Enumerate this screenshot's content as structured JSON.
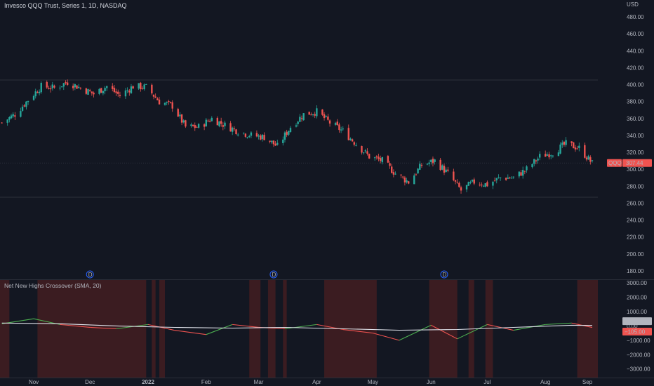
{
  "header": {
    "title": "Invesco QQQ Trust, Series 1, 1D, NASDAQ",
    "currency": "USD"
  },
  "indicator": {
    "title": "Net New Highs Crossover (SMA, 20)"
  },
  "colors": {
    "up": "#26a69a",
    "down": "#ef5350",
    "bg": "#131722",
    "green_line": "#4caf50",
    "red_line": "#ef5350",
    "sma_line": "#e0e3eb",
    "shade": "#4a1f22"
  },
  "chart_data": [
    {
      "type": "candlestick",
      "title": "Invesco QQQ Trust, Series 1, 1D, NASDAQ",
      "ylim": [
        170,
        490
      ],
      "y_ticks": [
        "480.00",
        "460.00",
        "440.00",
        "420.00",
        "400.00",
        "380.00",
        "360.00",
        "340.00",
        "320.00",
        "300.00",
        "280.00",
        "260.00",
        "240.00",
        "220.00",
        "200.00",
        "180.00"
      ],
      "x_ticks": [
        "Nov",
        "Dec",
        "2022",
        "Feb",
        "Mar",
        "Apr",
        "May",
        "Jun",
        "Jul",
        "Aug",
        "Sep"
      ],
      "last_price": {
        "symbol": "QQQ",
        "value": "307.44"
      },
      "event_markers": [
        "D",
        "D",
        "D"
      ],
      "close_path": [
        {
          "x": "2021-10-15",
          "close": 355
        },
        {
          "x": "2021-10-22",
          "close": 365
        },
        {
          "x": "2021-10-29",
          "close": 382
        },
        {
          "x": "2021-11-05",
          "close": 398
        },
        {
          "x": "2021-11-12",
          "close": 396
        },
        {
          "x": "2021-11-19",
          "close": 403
        },
        {
          "x": "2021-11-26",
          "close": 396
        },
        {
          "x": "2021-12-03",
          "close": 389
        },
        {
          "x": "2021-12-10",
          "close": 398
        },
        {
          "x": "2021-12-17",
          "close": 387
        },
        {
          "x": "2021-12-24",
          "close": 398
        },
        {
          "x": "2021-12-31",
          "close": 397
        },
        {
          "x": "2022-01-07",
          "close": 380
        },
        {
          "x": "2022-01-14",
          "close": 375
        },
        {
          "x": "2022-01-21",
          "close": 350
        },
        {
          "x": "2022-01-28",
          "close": 350
        },
        {
          "x": "2022-02-04",
          "close": 360
        },
        {
          "x": "2022-02-11",
          "close": 352
        },
        {
          "x": "2022-02-18",
          "close": 345
        },
        {
          "x": "2022-02-25",
          "close": 340
        },
        {
          "x": "2022-03-04",
          "close": 338
        },
        {
          "x": "2022-03-11",
          "close": 327
        },
        {
          "x": "2022-03-18",
          "close": 350
        },
        {
          "x": "2022-03-25",
          "close": 365
        },
        {
          "x": "2022-04-01",
          "close": 368
        },
        {
          "x": "2022-04-08",
          "close": 355
        },
        {
          "x": "2022-04-15",
          "close": 345
        },
        {
          "x": "2022-04-22",
          "close": 330
        },
        {
          "x": "2022-04-29",
          "close": 315
        },
        {
          "x": "2022-05-06",
          "close": 310
        },
        {
          "x": "2022-05-13",
          "close": 295
        },
        {
          "x": "2022-05-20",
          "close": 285
        },
        {
          "x": "2022-05-27",
          "close": 305
        },
        {
          "x": "2022-06-03",
          "close": 310
        },
        {
          "x": "2022-06-10",
          "close": 295
        },
        {
          "x": "2022-06-17",
          "close": 275
        },
        {
          "x": "2022-06-24",
          "close": 285
        },
        {
          "x": "2022-07-01",
          "close": 282
        },
        {
          "x": "2022-07-08",
          "close": 290
        },
        {
          "x": "2022-07-15",
          "close": 290
        },
        {
          "x": "2022-07-22",
          "close": 300
        },
        {
          "x": "2022-07-29",
          "close": 315
        },
        {
          "x": "2022-08-05",
          "close": 320
        },
        {
          "x": "2022-08-12",
          "close": 330
        },
        {
          "x": "2022-08-19",
          "close": 325
        },
        {
          "x": "2022-08-26",
          "close": 307
        }
      ]
    },
    {
      "type": "line",
      "title": "Net New Highs Crossover (SMA, 20)",
      "ylim": [
        -3600,
        3200
      ],
      "y_ticks": [
        "3000.00",
        "2000.00",
        "1000.00",
        "0.00",
        "-1000.00",
        "-2000.00",
        "-3000.00"
      ],
      "last_values": {
        "sma": "37.00",
        "net_new_highs": "-105.00"
      },
      "series": [
        {
          "name": "Net New Highs",
          "x": [
            "2021-10-15",
            "2021-11-01",
            "2021-11-15",
            "2021-12-01",
            "2021-12-15",
            "2022-01-01",
            "2022-01-15",
            "2022-02-01",
            "2022-02-15",
            "2022-03-01",
            "2022-03-15",
            "2022-04-01",
            "2022-04-15",
            "2022-05-01",
            "2022-05-15",
            "2022-06-01",
            "2022-06-15",
            "2022-07-01",
            "2022-07-15",
            "2022-08-01",
            "2022-08-15",
            "2022-08-26"
          ],
          "values": [
            150,
            500,
            100,
            -100,
            -200,
            100,
            -300,
            -600,
            100,
            -100,
            -200,
            100,
            -250,
            -500,
            -1000,
            50,
            -900,
            100,
            -300,
            100,
            200,
            -105
          ]
        },
        {
          "name": "SMA 20",
          "x": [
            "2021-10-15",
            "2021-11-15",
            "2021-12-15",
            "2022-01-15",
            "2022-02-15",
            "2022-03-15",
            "2022-04-15",
            "2022-05-15",
            "2022-06-15",
            "2022-07-15",
            "2022-08-15",
            "2022-08-26"
          ],
          "values": [
            200,
            150,
            0,
            -100,
            -150,
            -100,
            -200,
            -300,
            -250,
            -100,
            50,
            37
          ]
        }
      ]
    }
  ]
}
